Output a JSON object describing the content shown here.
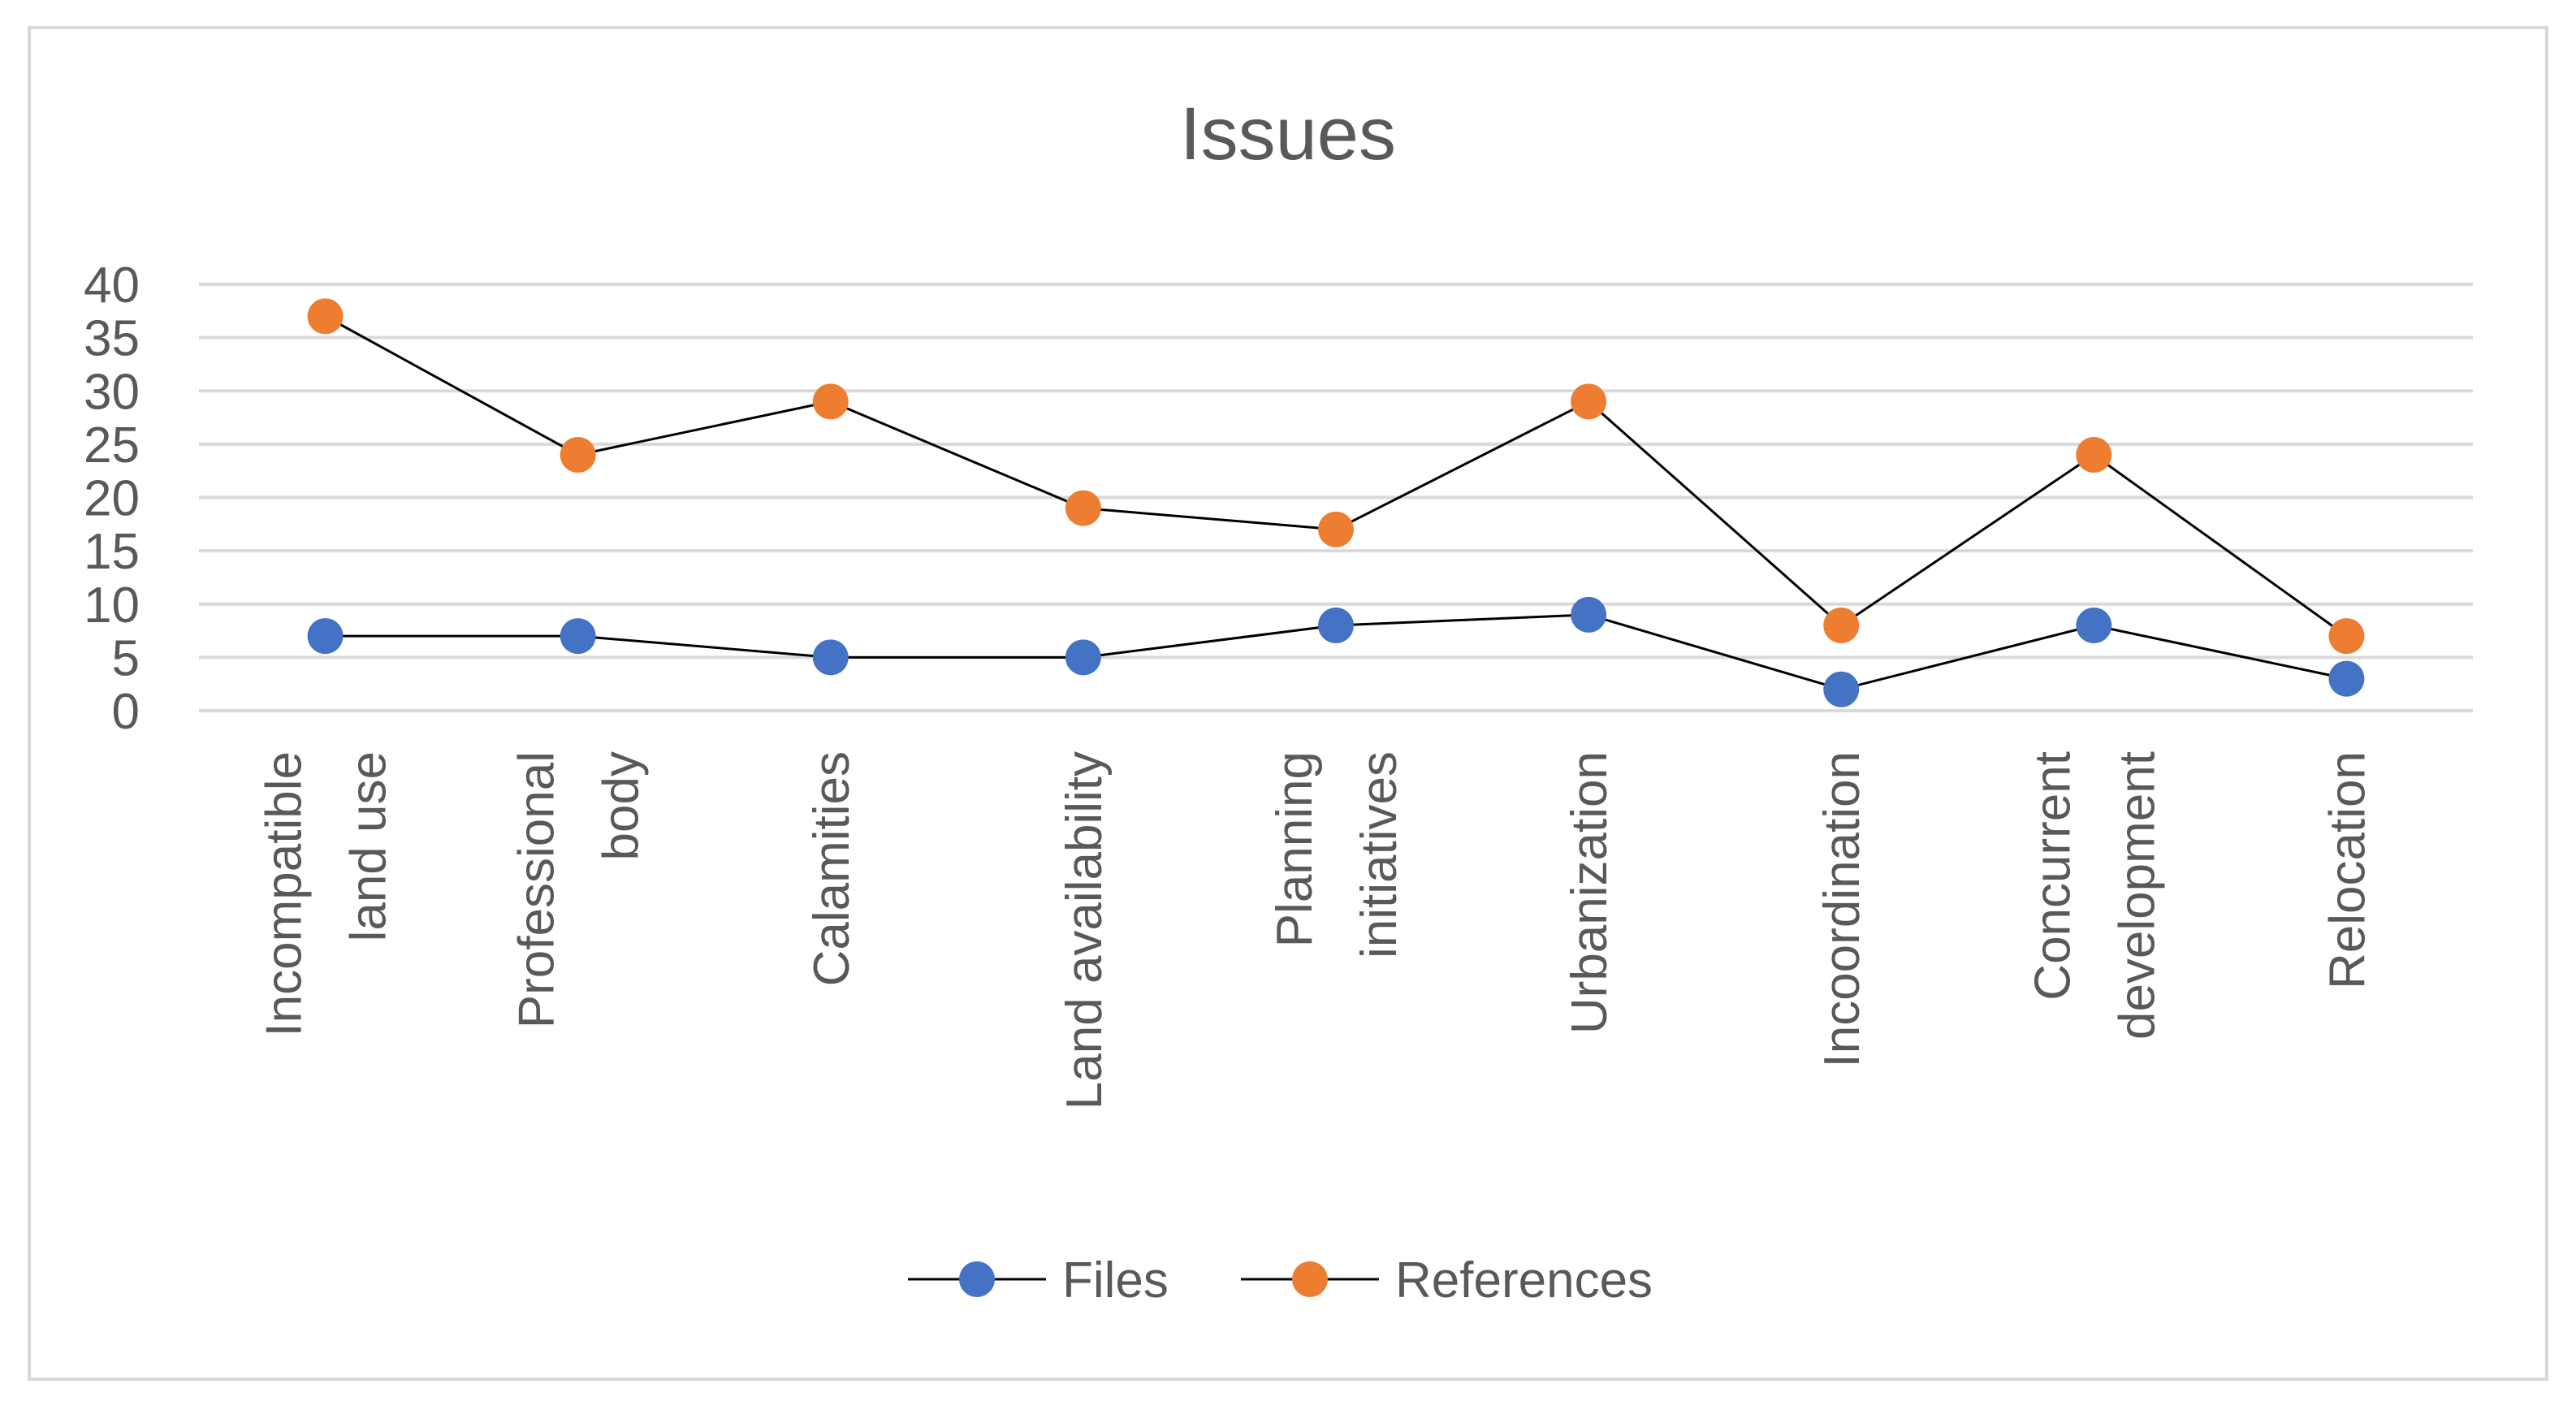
{
  "chart_data": {
    "type": "line",
    "title": "Issues",
    "categories": [
      [
        "Incompatible",
        "land use"
      ],
      [
        "Professional",
        "body"
      ],
      [
        "Calamities"
      ],
      [
        "Land availability"
      ],
      [
        "Planning",
        "initiatives"
      ],
      [
        "Urbanization"
      ],
      [
        "Incoordination"
      ],
      [
        "Concurrent",
        "development"
      ],
      [
        "Relocation"
      ]
    ],
    "series": [
      {
        "name": "Files",
        "color": "#4472c4",
        "values": [
          7,
          7,
          5,
          5,
          8,
          9,
          2,
          8,
          3
        ]
      },
      {
        "name": "References",
        "color": "#ed7d31",
        "values": [
          37,
          24,
          29,
          19,
          17,
          29,
          8,
          24,
          7
        ]
      }
    ],
    "ylim": [
      0,
      40
    ],
    "yticks": [
      0,
      5,
      10,
      15,
      20,
      25,
      30,
      35,
      40
    ],
    "grid": true,
    "legend": "bottom",
    "xlabel": "",
    "ylabel": ""
  }
}
